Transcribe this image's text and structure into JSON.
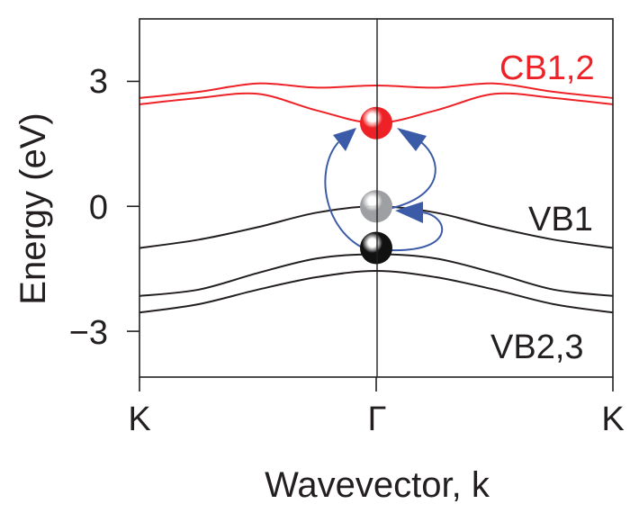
{
  "chart_data": {
    "type": "line",
    "xlabel": "Wavevector, k",
    "ylabel": "Energy (eV)",
    "x_ticks": [
      {
        "pos": -1,
        "label": "K"
      },
      {
        "pos": 0,
        "label": "Γ"
      },
      {
        "pos": 1,
        "label": "K"
      }
    ],
    "y_ticks": [
      {
        "value": 3,
        "label": "3"
      },
      {
        "value": 0,
        "label": "0"
      },
      {
        "value": -3,
        "label": "−3"
      }
    ],
    "xlim": [
      -1,
      1
    ],
    "ylim": [
      -4.1,
      4.5
    ],
    "grid": false,
    "series": [
      {
        "group": "CB1,2",
        "color": "#ee2226",
        "x": [
          -1,
          -0.75,
          -0.5,
          -0.25,
          0,
          0.25,
          0.5,
          0.75,
          1
        ],
        "y": [
          2.6,
          2.75,
          2.95,
          2.85,
          2.9,
          2.85,
          2.95,
          2.75,
          2.6
        ]
      },
      {
        "group": "CB1,2",
        "color": "#ee2226",
        "x": [
          -1,
          -0.75,
          -0.5,
          -0.25,
          0,
          0.25,
          0.5,
          0.75,
          1
        ],
        "y": [
          2.45,
          2.6,
          2.7,
          2.3,
          2.0,
          2.3,
          2.7,
          2.6,
          2.45
        ]
      },
      {
        "group": "VB1",
        "color": "#231f20",
        "x": [
          -1,
          -0.75,
          -0.5,
          -0.25,
          0,
          0.25,
          0.5,
          0.75,
          1
        ],
        "y": [
          -1.0,
          -0.8,
          -0.5,
          -0.15,
          0.0,
          -0.15,
          -0.5,
          -0.8,
          -1.0
        ]
      },
      {
        "group": "VB2,3",
        "color": "#231f20",
        "x": [
          -1,
          -0.75,
          -0.5,
          -0.25,
          0,
          0.25,
          0.5,
          0.75,
          1
        ],
        "y": [
          -2.15,
          -2.0,
          -1.6,
          -1.25,
          -1.15,
          -1.25,
          -1.6,
          -2.0,
          -2.15
        ]
      },
      {
        "group": "VB2,3",
        "color": "#231f20",
        "x": [
          -1,
          -0.75,
          -0.5,
          -0.25,
          0,
          0.25,
          0.5,
          0.75,
          1
        ],
        "y": [
          -2.55,
          -2.35,
          -2.0,
          -1.7,
          -1.55,
          -1.7,
          -2.0,
          -2.35,
          -2.55
        ]
      }
    ],
    "annotations": [
      {
        "text": "CB1,2",
        "color": "#ee2226"
      },
      {
        "text": "VB1",
        "color": "#231f20"
      },
      {
        "text": "VB2,3",
        "color": "#231f20"
      }
    ],
    "markers": [
      {
        "x": 0,
        "y": 2.0,
        "color": "#ee2226"
      },
      {
        "x": 0,
        "y": 0.0,
        "color": "#9d9fa2"
      },
      {
        "x": 0,
        "y": -1.0,
        "color": "#111111"
      }
    ],
    "arrow_color": "#3b5ba8"
  }
}
